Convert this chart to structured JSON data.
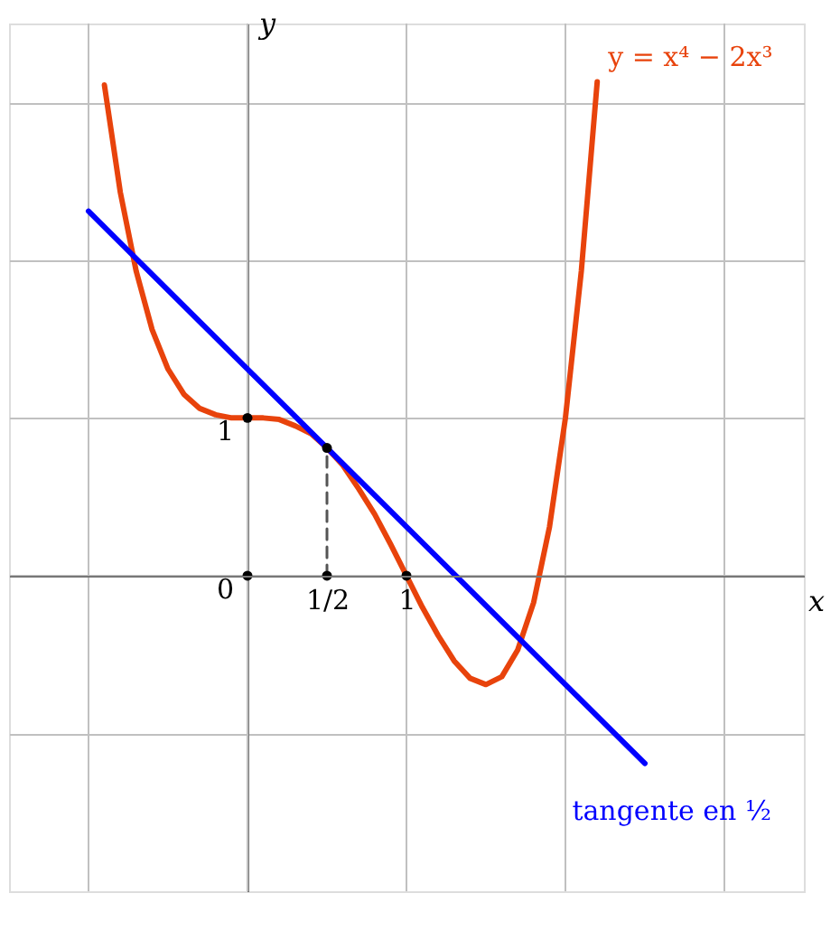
{
  "chart_data": {
    "type": "line",
    "xlabel": "x",
    "ylabel": "y",
    "xlim": [
      -1.5,
      3.5
    ],
    "ylim": [
      -2,
      3.5
    ],
    "xticks": [
      {
        "value": -1,
        "label": null
      },
      {
        "value": 0,
        "label": null
      },
      {
        "value": 0.5,
        "label": "1/2"
      },
      {
        "value": 1,
        "label": "1"
      },
      {
        "value": 2,
        "label": null
      },
      {
        "value": 3,
        "label": null
      }
    ],
    "yticks": [
      {
        "value": -1,
        "label": null
      },
      {
        "value": 0,
        "label": "0"
      },
      {
        "value": 1,
        "label": "1"
      },
      {
        "value": 2,
        "label": null
      },
      {
        "value": 3,
        "label": null
      }
    ],
    "grid": true,
    "series": [
      {
        "name": "y = x⁴ − 2x³",
        "color": "#e8430c",
        "x": [
          -0.9,
          -0.8,
          -0.7,
          -0.6,
          -0.5,
          -0.4,
          -0.3,
          -0.2,
          -0.1,
          0,
          0.1,
          0.2,
          0.3,
          0.4,
          0.5,
          0.6,
          0.7,
          0.8,
          0.9,
          1.0,
          1.1,
          1.2,
          1.3,
          1.4,
          1.5,
          1.6,
          1.7,
          1.8,
          1.9,
          2.0,
          2.1,
          2.2
        ],
        "values": [
          3.11,
          2.43,
          1.93,
          1.56,
          1.31,
          1.15,
          1.06,
          1.02,
          1.0,
          1,
          1.0,
          0.99,
          0.95,
          0.9,
          0.81,
          0.7,
          0.55,
          0.39,
          0.2,
          0,
          -0.2,
          -0.38,
          -0.54,
          -0.65,
          -0.69,
          -0.64,
          -0.47,
          -0.17,
          0.31,
          1,
          1.93,
          3.13
        ]
      },
      {
        "name": "tangente en ½",
        "color": "#0000ff",
        "x": [
          -1,
          2.5
        ],
        "values": [
          2.31,
          -1.19
        ]
      },
      {
        "color": "#555555",
        "line_style": "dashed",
        "x": [
          0.5,
          0.5
        ],
        "values": [
          0,
          0.81
        ]
      },
      {
        "type": "scatter",
        "color": "#000000",
        "marker": "circle",
        "x": [
          0,
          0.5,
          0,
          0.5,
          1
        ],
        "values": [
          1,
          0.81,
          0,
          0,
          0
        ]
      }
    ]
  }
}
